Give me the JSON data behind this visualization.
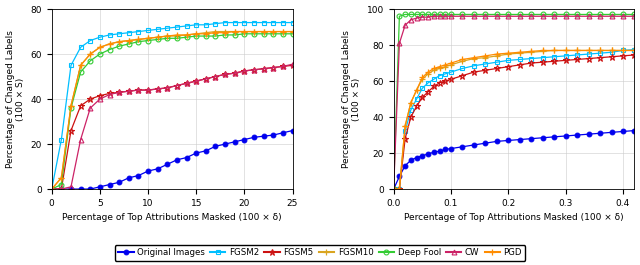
{
  "left": {
    "xlabel": "Percentage of Top Attributions Masked (100 × δ)",
    "ylabel": "Percentage of Changed Labels\n(100 × S)",
    "xlim": [
      0,
      25
    ],
    "ylim": [
      0,
      80
    ],
    "xticks": [
      0,
      5,
      10,
      15,
      20,
      25
    ],
    "yticks": [
      0,
      20,
      40,
      60,
      80
    ],
    "series": {
      "original": {
        "x": [
          0,
          1,
          2,
          3,
          4,
          5,
          6,
          7,
          8,
          9,
          10,
          11,
          12,
          13,
          14,
          15,
          16,
          17,
          18,
          19,
          20,
          21,
          22,
          23,
          24,
          25
        ],
        "y": [
          0,
          0,
          0,
          0,
          0,
          1,
          2,
          3,
          5,
          6,
          8,
          9,
          11,
          13,
          14,
          16,
          17,
          19,
          20,
          21,
          22,
          23,
          23.5,
          24,
          25,
          26
        ]
      },
      "fgsm2": {
        "x": [
          0,
          1,
          2,
          3,
          4,
          5,
          6,
          7,
          8,
          9,
          10,
          11,
          12,
          13,
          14,
          15,
          16,
          17,
          18,
          19,
          20,
          21,
          22,
          23,
          24,
          25
        ],
        "y": [
          0,
          22,
          55,
          63,
          66,
          67.5,
          68.5,
          69,
          69.5,
          70,
          70.5,
          71,
          71.5,
          72,
          72.5,
          73,
          73,
          73.5,
          74,
          74,
          74,
          74,
          74,
          74,
          74,
          74
        ]
      },
      "fgsm5": {
        "x": [
          0,
          1,
          2,
          3,
          4,
          5,
          6,
          7,
          8,
          9,
          10,
          11,
          12,
          13,
          14,
          15,
          16,
          17,
          18,
          19,
          20,
          21,
          22,
          23,
          24,
          25
        ],
        "y": [
          0,
          0,
          26,
          37,
          40,
          41.5,
          42.5,
          43,
          43.5,
          44,
          44,
          44.5,
          45,
          46,
          47,
          48,
          49,
          50,
          51,
          51.5,
          52.5,
          53,
          53.5,
          54,
          54.5,
          55
        ]
      },
      "fgsm10": {
        "x": [
          0,
          1,
          2,
          3,
          4,
          5,
          6,
          7,
          8,
          9,
          10,
          11,
          12,
          13,
          14,
          15,
          16,
          17,
          18,
          19,
          20,
          21,
          22,
          23,
          24,
          25
        ],
        "y": [
          0,
          5,
          37,
          55,
          60,
          63,
          64.5,
          65.5,
          66,
          66.5,
          67,
          67.5,
          68,
          68,
          68.5,
          69,
          69.5,
          70,
          70,
          70,
          70,
          70,
          70,
          70,
          70,
          70
        ]
      },
      "deepfool": {
        "x": [
          0,
          1,
          2,
          3,
          4,
          5,
          6,
          7,
          8,
          9,
          10,
          11,
          12,
          13,
          14,
          15,
          16,
          17,
          18,
          19,
          20,
          21,
          22,
          23,
          24,
          25
        ],
        "y": [
          0,
          2,
          36,
          52,
          57,
          60,
          62,
          63.5,
          64.5,
          65.5,
          66,
          66.5,
          67,
          67,
          67.5,
          68,
          68,
          68,
          68.5,
          68.5,
          69,
          69,
          69,
          69,
          69,
          69
        ]
      },
      "cw": {
        "x": [
          0,
          1,
          2,
          3,
          4,
          5,
          6,
          7,
          8,
          9,
          10,
          11,
          12,
          13,
          14,
          15,
          16,
          17,
          18,
          19,
          20,
          21,
          22,
          23,
          24,
          25
        ],
        "y": [
          0,
          0,
          1,
          22,
          36,
          40,
          42,
          43,
          43.5,
          44,
          44,
          44.5,
          45,
          46,
          47,
          48,
          49,
          50,
          51,
          51.5,
          52.5,
          53,
          53.5,
          54,
          54.5,
          55.5
        ]
      },
      "pgd": {
        "x": [
          0,
          1,
          2,
          3,
          4,
          5,
          6,
          7,
          8,
          9,
          10,
          11,
          12,
          13,
          14,
          15,
          16,
          17,
          18,
          19,
          20,
          21,
          22,
          23,
          24,
          25
        ],
        "y": [
          0,
          5,
          37,
          55,
          60,
          63,
          64.5,
          65.5,
          66,
          66.5,
          67,
          67.5,
          68,
          68.5,
          68.5,
          69,
          69,
          69.5,
          69.5,
          70,
          70,
          70,
          70,
          70,
          70,
          70
        ]
      }
    }
  },
  "right": {
    "xlabel": "Percentage of Top Attributions Masked (100 × δ)",
    "ylabel": "Percentage of Changed Labels\n(100 × S)",
    "xlim": [
      0,
      0.42
    ],
    "ylim": [
      0,
      100
    ],
    "xticks": [
      0,
      0.1,
      0.2,
      0.3,
      0.4
    ],
    "yticks": [
      0,
      20,
      40,
      60,
      80,
      100
    ],
    "series": {
      "original": {
        "x": [
          0,
          0.01,
          0.02,
          0.03,
          0.04,
          0.05,
          0.06,
          0.07,
          0.08,
          0.09,
          0.1,
          0.12,
          0.14,
          0.16,
          0.18,
          0.2,
          0.22,
          0.24,
          0.26,
          0.28,
          0.3,
          0.32,
          0.34,
          0.36,
          0.38,
          0.4,
          0.42
        ],
        "y": [
          0,
          7,
          13,
          16,
          17.5,
          18.5,
          19.5,
          20.5,
          21,
          22,
          22.5,
          23.5,
          24.5,
          25.5,
          26.5,
          27,
          27.5,
          28,
          28.5,
          29,
          29.5,
          30,
          30.5,
          31,
          31.5,
          32,
          32.5
        ]
      },
      "fgsm2": {
        "x": [
          0,
          0.01,
          0.02,
          0.03,
          0.04,
          0.05,
          0.06,
          0.07,
          0.08,
          0.09,
          0.1,
          0.12,
          0.14,
          0.16,
          0.18,
          0.2,
          0.22,
          0.24,
          0.26,
          0.28,
          0.3,
          0.32,
          0.34,
          0.36,
          0.38,
          0.4,
          0.42
        ],
        "y": [
          0,
          0,
          32,
          44,
          50,
          56,
          59,
          61,
          63,
          64,
          65,
          67,
          68.5,
          69.5,
          70.5,
          71.5,
          72,
          72.5,
          73,
          73.5,
          74,
          74.5,
          75,
          75.5,
          76,
          77,
          77.5
        ]
      },
      "fgsm5": {
        "x": [
          0,
          0.01,
          0.02,
          0.03,
          0.04,
          0.05,
          0.06,
          0.07,
          0.08,
          0.09,
          0.1,
          0.12,
          0.14,
          0.16,
          0.18,
          0.2,
          0.22,
          0.24,
          0.26,
          0.28,
          0.3,
          0.32,
          0.34,
          0.36,
          0.38,
          0.4,
          0.42
        ],
        "y": [
          0,
          0,
          28,
          40,
          46,
          51,
          54,
          57,
          59,
          60,
          61,
          63,
          65,
          66,
          67,
          68,
          69,
          70,
          70.5,
          71,
          71.5,
          72,
          72.5,
          73,
          73.5,
          74,
          74.5
        ]
      },
      "fgsm10": {
        "x": [
          0,
          0.01,
          0.02,
          0.03,
          0.04,
          0.05,
          0.06,
          0.07,
          0.08,
          0.09,
          0.1,
          0.12,
          0.14,
          0.16,
          0.18,
          0.2,
          0.22,
          0.24,
          0.26,
          0.28,
          0.3,
          0.32,
          0.34,
          0.36,
          0.38,
          0.4,
          0.42
        ],
        "y": [
          0,
          0,
          35,
          48,
          55,
          61,
          64,
          66,
          67,
          68,
          69,
          71,
          72.5,
          73,
          74,
          75,
          75.5,
          76,
          76.5,
          77,
          77,
          77,
          77,
          77,
          77,
          77,
          77
        ]
      },
      "deepfool": {
        "x": [
          0,
          0.01,
          0.02,
          0.03,
          0.04,
          0.05,
          0.06,
          0.07,
          0.08,
          0.09,
          0.1,
          0.12,
          0.14,
          0.16,
          0.18,
          0.2,
          0.22,
          0.24,
          0.26,
          0.28,
          0.3,
          0.32,
          0.34,
          0.36,
          0.38,
          0.4,
          0.42
        ],
        "y": [
          0,
          96,
          97,
          97,
          97,
          97,
          97,
          97,
          97,
          97,
          97,
          97,
          97,
          97,
          97,
          97,
          97,
          97,
          97,
          97,
          97,
          97,
          97,
          97,
          97,
          97,
          97
        ]
      },
      "cw": {
        "x": [
          0,
          0.01,
          0.02,
          0.03,
          0.04,
          0.05,
          0.06,
          0.07,
          0.08,
          0.09,
          0.1,
          0.12,
          0.14,
          0.16,
          0.18,
          0.2,
          0.22,
          0.24,
          0.26,
          0.28,
          0.3,
          0.32,
          0.34,
          0.36,
          0.38,
          0.4,
          0.42
        ],
        "y": [
          0,
          81,
          91,
          94,
          95,
          95.5,
          95.5,
          96,
          96,
          96,
          96,
          96,
          96,
          96,
          96,
          96,
          96,
          96,
          96,
          96,
          96,
          96,
          96,
          96,
          96,
          96,
          96
        ]
      },
      "pgd": {
        "x": [
          0,
          0.01,
          0.02,
          0.03,
          0.04,
          0.05,
          0.06,
          0.07,
          0.08,
          0.09,
          0.1,
          0.12,
          0.14,
          0.16,
          0.18,
          0.2,
          0.22,
          0.24,
          0.26,
          0.28,
          0.3,
          0.32,
          0.34,
          0.36,
          0.38,
          0.4,
          0.42
        ],
        "y": [
          0,
          0,
          35,
          48,
          55,
          62,
          65,
          67,
          68,
          69,
          70,
          72,
          73,
          74,
          75,
          75.5,
          76,
          76.5,
          77,
          77,
          77,
          77,
          77,
          77,
          77,
          77,
          77
        ]
      }
    }
  },
  "legend_order": [
    "original",
    "fgsm2",
    "fgsm5",
    "fgsm10",
    "deepfool",
    "cw",
    "pgd"
  ]
}
